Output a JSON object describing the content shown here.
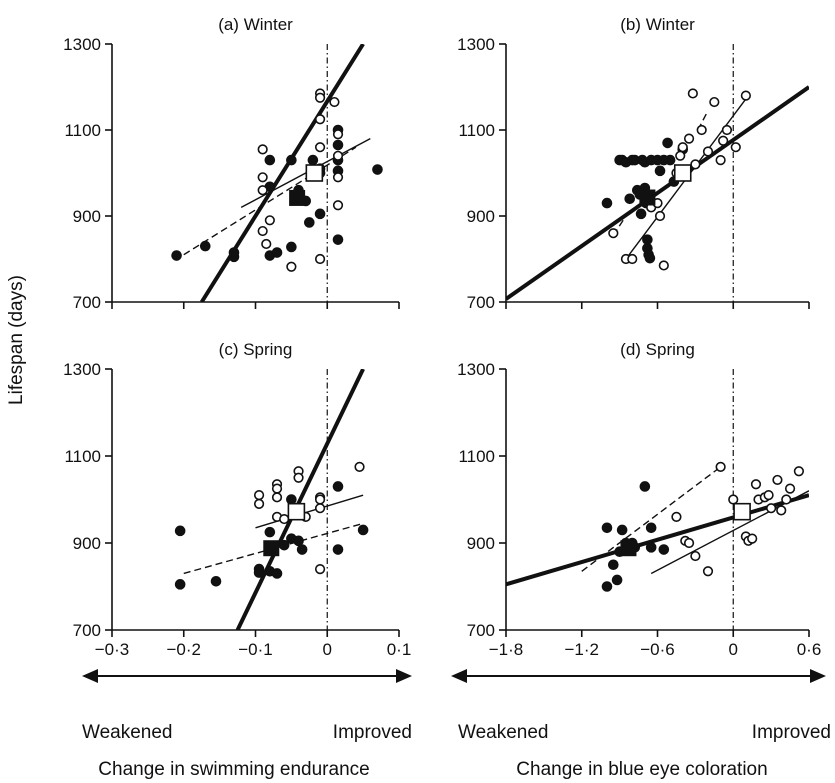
{
  "figure": {
    "ylabel": "Lifespan (days)",
    "left_axis": {
      "xlabel": "Change in swimming endurance",
      "weak_label": "Weakened",
      "improved_label": "Improved",
      "xlim": [
        -0.3,
        0.1
      ],
      "ticks": [
        -0.3,
        -0.2,
        -0.1,
        0,
        0.1
      ],
      "tick_labels": [
        "−0·3",
        "−0·2",
        "−0·1",
        "0",
        "0·1"
      ]
    },
    "right_axis": {
      "xlabel": "Change in blue eye coloration",
      "weak_label": "Weakened",
      "improved_label": "Improved",
      "xlim": [
        -1.8,
        0.6
      ],
      "ticks": [
        -1.8,
        -1.2,
        -0.6,
        0,
        0.6
      ],
      "tick_labels": [
        "−1·8",
        "−1·2",
        "−0·6",
        "0",
        "0·6"
      ]
    },
    "yticks": [
      700,
      900,
      1100,
      1300
    ],
    "ytick_labels": [
      "700",
      "900",
      "1100",
      "1300"
    ],
    "colors": {
      "ink": "#111111",
      "open_fill": "#ffffff",
      "filled": "#111111"
    }
  },
  "chart_data": [
    {
      "type": "scatter",
      "title": "(a)  Winter",
      "xlim": [
        -0.3,
        0.1
      ],
      "ylim": [
        700,
        1300
      ],
      "reference_line_x": 0,
      "series": [
        {
          "marker": "filled-circle",
          "points": [
            [
              -0.21,
              808
            ],
            [
              -0.17,
              830
            ],
            [
              -0.13,
              805
            ],
            [
              -0.13,
              815
            ],
            [
              -0.08,
              1030
            ],
            [
              -0.08,
              968
            ],
            [
              -0.08,
              808
            ],
            [
              -0.07,
              815
            ],
            [
              -0.05,
              828
            ],
            [
              -0.05,
              1030
            ],
            [
              -0.04,
              960
            ],
            [
              -0.03,
              935
            ],
            [
              -0.025,
              885
            ],
            [
              -0.02,
              1030
            ],
            [
              -0.01,
              1010
            ],
            [
              -0.01,
              1000
            ],
            [
              -0.01,
              905
            ],
            [
              0.015,
              1100
            ],
            [
              0.015,
              1065
            ],
            [
              0.015,
              1030
            ],
            [
              0.015,
              1005
            ],
            [
              0.015,
              845
            ],
            [
              0.07,
              1008
            ]
          ]
        },
        {
          "marker": "open-circle",
          "points": [
            [
              -0.09,
              1055
            ],
            [
              -0.09,
              990
            ],
            [
              -0.09,
              960
            ],
            [
              -0.09,
              865
            ],
            [
              -0.085,
              835
            ],
            [
              -0.08,
              890
            ],
            [
              -0.05,
              782
            ],
            [
              -0.01,
              1185
            ],
            [
              -0.01,
              1175
            ],
            [
              -0.01,
              1125
            ],
            [
              -0.01,
              1060
            ],
            [
              -0.01,
              800
            ],
            [
              0.01,
              1165
            ],
            [
              0.015,
              1090
            ],
            [
              0.015,
              1040
            ],
            [
              0.015,
              990
            ],
            [
              0.015,
              925
            ]
          ]
        },
        {
          "marker": "filled-square",
          "points": [
            [
              -0.042,
              942
            ]
          ]
        },
        {
          "marker": "open-square",
          "points": [
            [
              -0.018,
              1000
            ]
          ]
        }
      ],
      "lines": [
        {
          "style": "thick",
          "x": [
            -0.175,
            0.05
          ],
          "y": [
            700,
            1300
          ]
        },
        {
          "style": "thin",
          "x": [
            -0.12,
            0.06
          ],
          "y": [
            920,
            1080
          ]
        },
        {
          "style": "dashed",
          "x": [
            -0.2,
            0.04
          ],
          "y": [
            810,
            1060
          ]
        }
      ]
    },
    {
      "type": "scatter",
      "title": "(b)  Winter",
      "xlim": [
        -1.8,
        0.6
      ],
      "ylim": [
        700,
        1300
      ],
      "reference_line_x": 0,
      "series": [
        {
          "marker": "filled-circle",
          "points": [
            [
              -1.0,
              930
            ],
            [
              -0.9,
              1030
            ],
            [
              -0.88,
              1030
            ],
            [
              -0.85,
              1025
            ],
            [
              -0.82,
              940
            ],
            [
              -0.8,
              1030
            ],
            [
              -0.78,
              1030
            ],
            [
              -0.76,
              960
            ],
            [
              -0.74,
              950
            ],
            [
              -0.73,
              905
            ],
            [
              -0.72,
              1030
            ],
            [
              -0.7,
              1025
            ],
            [
              -0.7,
              965
            ],
            [
              -0.7,
              940
            ],
            [
              -0.69,
              930
            ],
            [
              -0.68,
              845
            ],
            [
              -0.68,
              825
            ],
            [
              -0.67,
              810
            ],
            [
              -0.66,
              802
            ],
            [
              -0.65,
              1030
            ],
            [
              -0.6,
              1030
            ],
            [
              -0.58,
              1005
            ],
            [
              -0.55,
              1030
            ],
            [
              -0.52,
              1070
            ],
            [
              -0.5,
              1030
            ],
            [
              -0.47,
              980
            ],
            [
              -0.4,
              1055
            ]
          ]
        },
        {
          "marker": "open-circle",
          "points": [
            [
              -0.95,
              860
            ],
            [
              -0.85,
              800
            ],
            [
              -0.8,
              800
            ],
            [
              -0.65,
              920
            ],
            [
              -0.6,
              930
            ],
            [
              -0.58,
              900
            ],
            [
              -0.55,
              785
            ],
            [
              -0.45,
              1000
            ],
            [
              -0.42,
              1040
            ],
            [
              -0.4,
              1060
            ],
            [
              -0.35,
              1080
            ],
            [
              -0.32,
              1185
            ],
            [
              -0.3,
              1020
            ],
            [
              -0.25,
              1100
            ],
            [
              -0.2,
              1050
            ],
            [
              -0.15,
              1165
            ],
            [
              -0.1,
              1030
            ],
            [
              -0.08,
              1075
            ],
            [
              -0.05,
              1100
            ],
            [
              0.02,
              1060
            ],
            [
              0.1,
              1180
            ]
          ]
        },
        {
          "marker": "filled-square",
          "points": [
            [
              -0.68,
              943
            ]
          ]
        },
        {
          "marker": "open-square",
          "points": [
            [
              -0.4,
              1000
            ]
          ]
        }
      ],
      "lines": [
        {
          "style": "thick",
          "x": [
            -1.8,
            0.6
          ],
          "y": [
            707,
            1200
          ]
        },
        {
          "style": "thin",
          "x": [
            -0.85,
            0.12
          ],
          "y": [
            800,
            1180
          ]
        },
        {
          "style": "dashed",
          "x": [
            -0.95,
            -0.85
          ],
          "y": [
            855,
            900
          ]
        },
        {
          "style": "dashed",
          "x": [
            -0.28,
            -0.2
          ],
          "y": [
            1100,
            1145
          ]
        }
      ]
    },
    {
      "type": "scatter",
      "title": "(c)  Spring",
      "xlim": [
        -0.3,
        0.1
      ],
      "ylim": [
        700,
        1300
      ],
      "reference_line_x": 0,
      "series": [
        {
          "marker": "filled-circle",
          "points": [
            [
              -0.205,
              928
            ],
            [
              -0.205,
              805
            ],
            [
              -0.155,
              812
            ],
            [
              -0.095,
              840
            ],
            [
              -0.095,
              832
            ],
            [
              -0.08,
              925
            ],
            [
              -0.08,
              835
            ],
            [
              -0.07,
              830
            ],
            [
              -0.06,
              895
            ],
            [
              -0.05,
              1000
            ],
            [
              -0.05,
              910
            ],
            [
              -0.04,
              905
            ],
            [
              -0.035,
              885
            ],
            [
              0.015,
              1030
            ],
            [
              0.015,
              885
            ],
            [
              0.05,
              930
            ]
          ]
        },
        {
          "marker": "open-circle",
          "points": [
            [
              -0.095,
              1010
            ],
            [
              -0.095,
              990
            ],
            [
              -0.07,
              1035
            ],
            [
              -0.07,
              1025
            ],
            [
              -0.07,
              1005
            ],
            [
              -0.07,
              960
            ],
            [
              -0.06,
              955
            ],
            [
              -0.04,
              1065
            ],
            [
              -0.04,
              1050
            ],
            [
              -0.03,
              960
            ],
            [
              -0.01,
              1005
            ],
            [
              -0.01,
              1000
            ],
            [
              -0.01,
              980
            ],
            [
              -0.01,
              840
            ],
            [
              0.045,
              1075
            ]
          ]
        },
        {
          "marker": "filled-square",
          "points": [
            [
              -0.078,
              888
            ]
          ]
        },
        {
          "marker": "open-square",
          "points": [
            [
              -0.043,
              972
            ]
          ]
        }
      ],
      "lines": [
        {
          "style": "thick",
          "x": [
            -0.125,
            0.05
          ],
          "y": [
            700,
            1300
          ]
        },
        {
          "style": "thin",
          "x": [
            -0.1,
            0.05
          ],
          "y": [
            935,
            1010
          ]
        },
        {
          "style": "dashed",
          "x": [
            -0.2,
            0.05
          ],
          "y": [
            830,
            945
          ]
        }
      ]
    },
    {
      "type": "scatter",
      "title": "(d)  Spring",
      "xlim": [
        -1.8,
        0.6
      ],
      "ylim": [
        700,
        1300
      ],
      "reference_line_x": 0,
      "series": [
        {
          "marker": "filled-circle",
          "points": [
            [
              -1.0,
              935
            ],
            [
              -1.0,
              800
            ],
            [
              -0.95,
              850
            ],
            [
              -0.92,
              815
            ],
            [
              -0.9,
              880
            ],
            [
              -0.88,
              930
            ],
            [
              -0.85,
              900
            ],
            [
              -0.8,
              900
            ],
            [
              -0.78,
              890
            ],
            [
              -0.7,
              1030
            ],
            [
              -0.65,
              935
            ],
            [
              -0.65,
              890
            ],
            [
              -0.55,
              885
            ]
          ]
        },
        {
          "marker": "open-circle",
          "points": [
            [
              -0.45,
              960
            ],
            [
              -0.38,
              905
            ],
            [
              -0.35,
              900
            ],
            [
              -0.3,
              870
            ],
            [
              -0.2,
              835
            ],
            [
              -0.1,
              1075
            ],
            [
              0.0,
              1000
            ],
            [
              0.05,
              970
            ],
            [
              0.1,
              915
            ],
            [
              0.12,
              905
            ],
            [
              0.15,
              910
            ],
            [
              0.18,
              1035
            ],
            [
              0.2,
              1000
            ],
            [
              0.25,
              1005
            ],
            [
              0.28,
              1010
            ],
            [
              0.3,
              980
            ],
            [
              0.35,
              1045
            ],
            [
              0.38,
              975
            ],
            [
              0.42,
              1000
            ],
            [
              0.45,
              1025
            ],
            [
              0.52,
              1065
            ]
          ]
        },
        {
          "marker": "filled-square",
          "points": [
            [
              -0.83,
              888
            ]
          ]
        },
        {
          "marker": "open-square",
          "points": [
            [
              0.07,
              972
            ]
          ]
        }
      ],
      "lines": [
        {
          "style": "thick",
          "x": [
            -1.8,
            0.6
          ],
          "y": [
            805,
            1010
          ]
        },
        {
          "style": "thin",
          "x": [
            -0.65,
            0.6
          ],
          "y": [
            830,
            1020
          ]
        },
        {
          "style": "dashed",
          "x": [
            -1.2,
            -0.1
          ],
          "y": [
            835,
            1075
          ]
        }
      ]
    }
  ]
}
